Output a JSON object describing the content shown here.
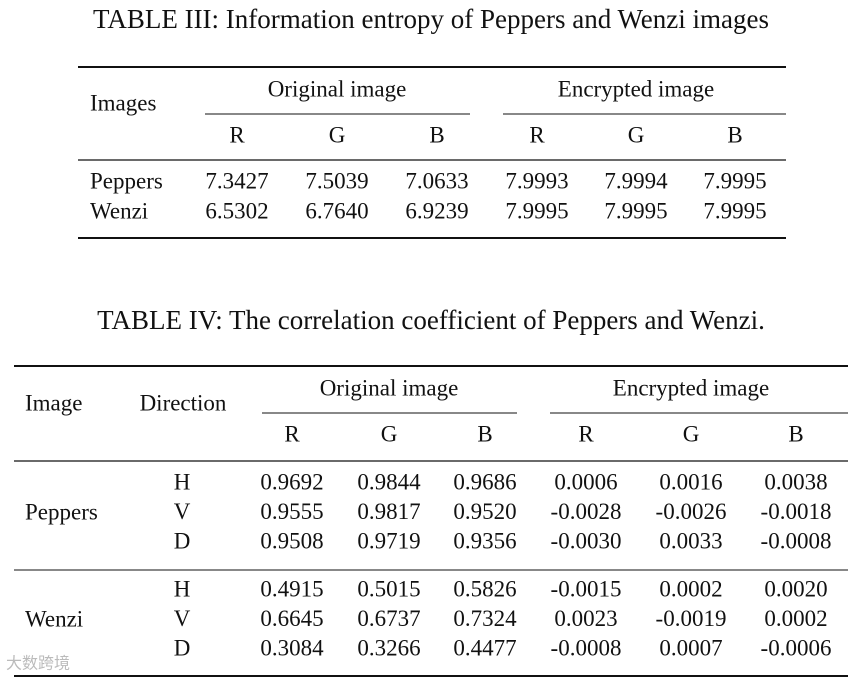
{
  "table3": {
    "title": "TABLE III: Information entropy of Peppers and Wenzi images",
    "header": {
      "images": "Images",
      "groups": [
        "Original image",
        "Encrypted image"
      ],
      "channels": [
        "R",
        "G",
        "B",
        "R",
        "G",
        "B"
      ]
    },
    "rows": [
      [
        "Peppers",
        "7.3427",
        "7.5039",
        "7.0633",
        "7.9993",
        "7.9994",
        "7.9995"
      ],
      [
        "Wenzi",
        "6.5302",
        "6.7640",
        "6.9239",
        "7.9995",
        "7.9995",
        "7.9995"
      ]
    ]
  },
  "table4": {
    "title": "TABLE IV: The correlation coefficient of Peppers and Wenzi.",
    "header": {
      "image": "Image",
      "direction": "Direction",
      "groups": [
        "Original image",
        "Encrypted image"
      ],
      "channels": [
        "R",
        "G",
        "B",
        "R",
        "G",
        "B"
      ]
    },
    "groups": [
      {
        "name": "Peppers",
        "rows": [
          [
            "H",
            "0.9692",
            "0.9844",
            "0.9686",
            "0.0006",
            "0.0016",
            "0.0038"
          ],
          [
            "V",
            "0.9555",
            "0.9817",
            "0.9520",
            "-0.0028",
            "-0.0026",
            "-0.0018"
          ],
          [
            "D",
            "0.9508",
            "0.9719",
            "0.9356",
            "-0.0030",
            "0.0033",
            "-0.0008"
          ]
        ]
      },
      {
        "name": "Wenzi",
        "rows": [
          [
            "H",
            "0.4915",
            "0.5015",
            "0.5826",
            "-0.0015",
            "0.0002",
            "0.0020"
          ],
          [
            "V",
            "0.6645",
            "0.6737",
            "0.7324",
            "0.0023",
            "-0.0019",
            "0.0002"
          ],
          [
            "D",
            "0.3084",
            "0.3266",
            "0.4477",
            "-0.0008",
            "0.0007",
            "-0.0006"
          ]
        ]
      }
    ]
  },
  "watermark": "大数跨境"
}
